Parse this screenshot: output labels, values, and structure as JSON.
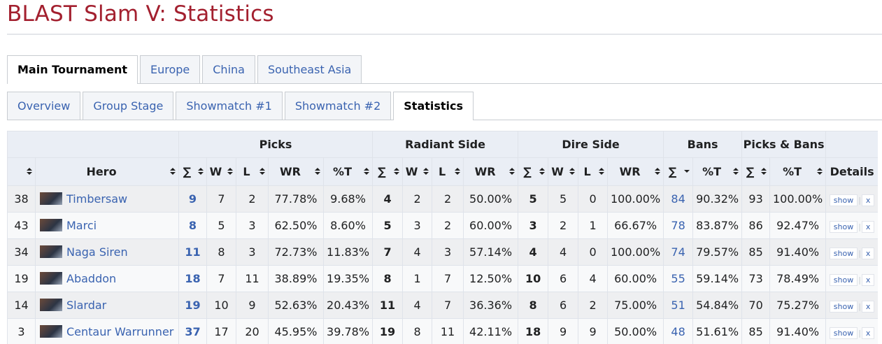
{
  "header": {
    "title": "BLAST Slam V: Statistics"
  },
  "tabs": {
    "primary": [
      "Main Tournament",
      "Europe",
      "China",
      "Southeast Asia"
    ],
    "secondary": [
      "Overview",
      "Group Stage",
      "Showmatch #1",
      "Showmatch #2",
      "Statistics"
    ]
  },
  "table": {
    "group_headers": [
      "Picks",
      "Radiant Side",
      "Dire Side",
      "Bans",
      "Picks & Bans"
    ],
    "headers": [
      "Hero",
      "∑",
      "W",
      "L",
      "WR",
      "%T",
      "∑",
      "W",
      "L",
      "WR",
      "∑",
      "W",
      "L",
      "WR",
      "∑",
      "%T",
      "∑",
      "%T",
      "Details"
    ],
    "rows": [
      [
        38,
        "Timbersaw",
        9,
        7,
        2,
        "77.78%",
        "9.68%",
        4,
        2,
        2,
        "50.00%",
        5,
        5,
        0,
        "100.00%",
        84,
        "90.32%",
        93,
        "100.00%"
      ],
      [
        43,
        "Marci",
        8,
        5,
        3,
        "62.50%",
        "8.60%",
        5,
        3,
        2,
        "60.00%",
        3,
        2,
        1,
        "66.67%",
        78,
        "83.87%",
        86,
        "92.47%"
      ],
      [
        34,
        "Naga Siren",
        11,
        8,
        3,
        "72.73%",
        "11.83%",
        7,
        4,
        3,
        "57.14%",
        4,
        4,
        0,
        "100.00%",
        74,
        "79.57%",
        85,
        "91.40%"
      ],
      [
        19,
        "Abaddon",
        18,
        7,
        11,
        "38.89%",
        "19.35%",
        8,
        1,
        7,
        "12.50%",
        10,
        6,
        4,
        "60.00%",
        55,
        "59.14%",
        73,
        "78.49%"
      ],
      [
        14,
        "Slardar",
        19,
        10,
        9,
        "52.63%",
        "20.43%",
        11,
        4,
        7,
        "36.36%",
        8,
        6,
        2,
        "75.00%",
        51,
        "54.84%",
        70,
        "75.27%"
      ],
      [
        3,
        "Centaur Warrunner",
        37,
        17,
        20,
        "45.95%",
        "39.78%",
        19,
        8,
        11,
        "42.11%",
        18,
        9,
        9,
        "50.00%",
        48,
        "51.61%",
        85,
        "91.40%"
      ]
    ],
    "row_actions": [
      "show",
      "x"
    ]
  }
}
